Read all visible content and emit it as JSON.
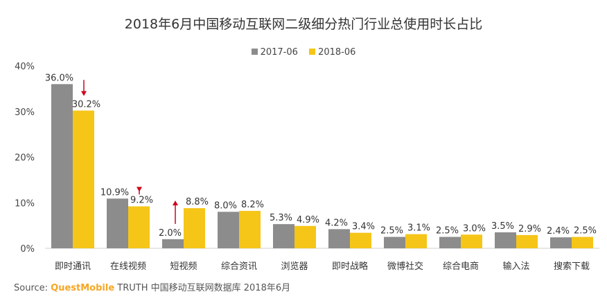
{
  "chart_data": {
    "type": "bar",
    "title": "2018年6月中国移动互联网二级细分热门行业总使用时长占比",
    "categories": [
      "即时通讯",
      "在线视频",
      "短视频",
      "综合资讯",
      "浏览器",
      "即时战略",
      "微博社交",
      "综合电商",
      "输入法",
      "搜索下载"
    ],
    "series": [
      {
        "name": "2017-06",
        "color": "#8c8c8c",
        "values": [
          36.0,
          10.9,
          2.0,
          8.0,
          5.3,
          4.2,
          2.5,
          2.5,
          3.5,
          2.4
        ]
      },
      {
        "name": "2018-06",
        "color": "#f5c518",
        "values": [
          30.2,
          9.2,
          8.8,
          8.2,
          4.9,
          3.4,
          3.1,
          3.0,
          2.9,
          2.5
        ]
      }
    ],
    "value_labels": [
      [
        "36.0%",
        "10.9%",
        "2.0%",
        "8.0%",
        "5.3%",
        "4.2%",
        "2.5%",
        "2.5%",
        "3.5%",
        "2.4%"
      ],
      [
        "30.2%",
        "9.2%",
        "8.8%",
        "8.2%",
        "4.9%",
        "3.4%",
        "3.1%",
        "3.0%",
        "2.9%",
        "2.5%"
      ]
    ],
    "yticks": [
      "0%",
      "10%",
      "20%",
      "30%",
      "40%"
    ],
    "ylim": [
      0,
      40
    ],
    "legend_position": "top-center",
    "grid": false,
    "annotations": [
      {
        "category": "即时通讯",
        "direction": "down",
        "color": "#d0021b"
      },
      {
        "category": "在线视频",
        "direction": "down",
        "color": "#d0021b"
      },
      {
        "category": "短视频",
        "direction": "up",
        "color": "#d0021b"
      }
    ]
  },
  "source": {
    "label": "Source:",
    "brand": "QuestMobile",
    "text": "TRUTH 中国移动互联网数据库 2018年6月"
  }
}
